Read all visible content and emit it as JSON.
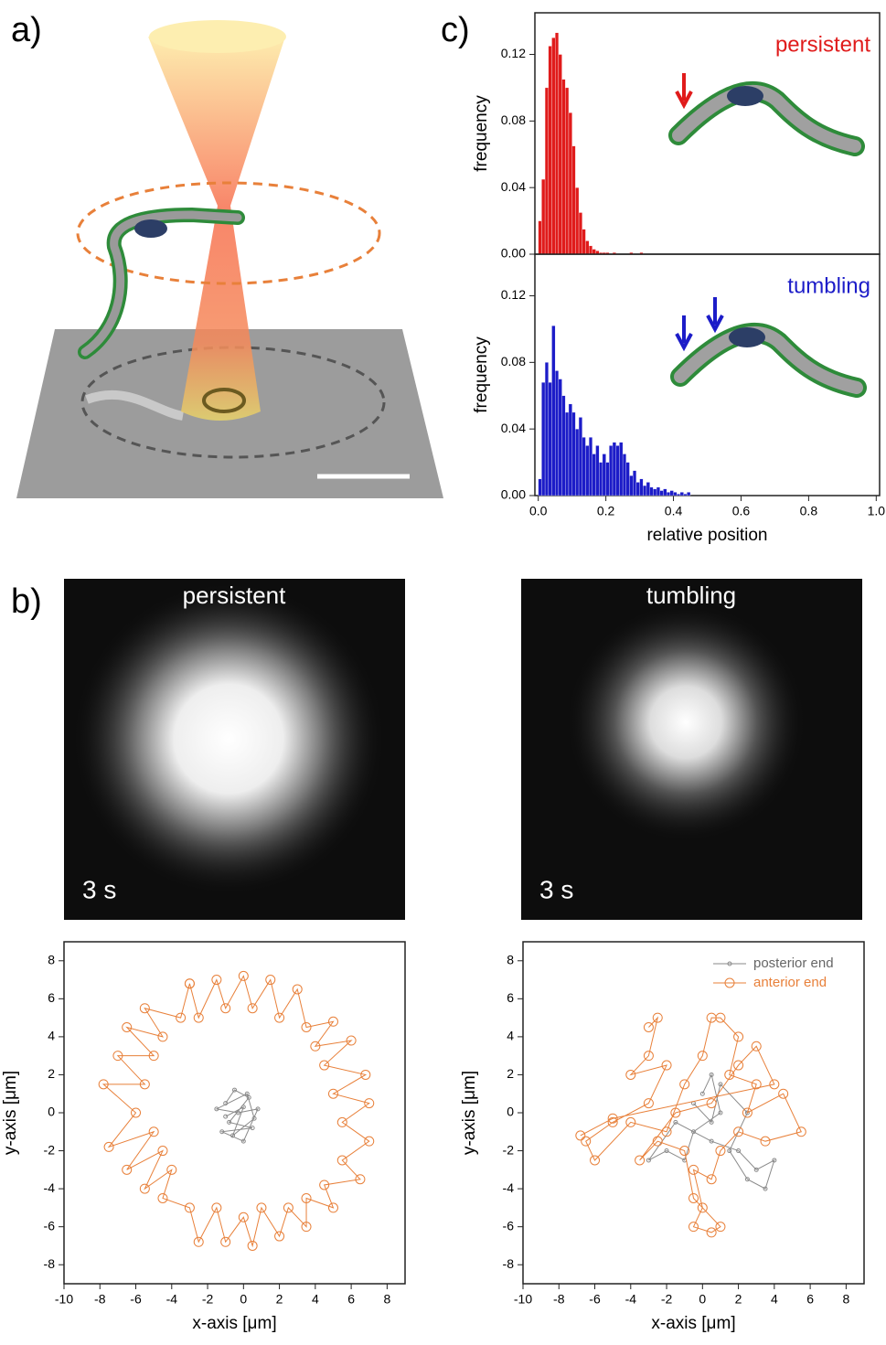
{
  "panel_labels": [
    "a)",
    "b)",
    "c)"
  ],
  "micrographs": [
    {
      "label": "persistent",
      "time": "3 s"
    },
    {
      "label": "tumbling",
      "time": "3 s"
    }
  ],
  "chart_data": [
    {
      "type": "histogram",
      "title": "persistent",
      "color": "#e01b1b",
      "y_label": "frequency",
      "bins": [
        0,
        0.01,
        0.02,
        0.03,
        0.04,
        0.05,
        0.06,
        0.07,
        0.08,
        0.09,
        0.1,
        0.11,
        0.12,
        0.13,
        0.14,
        0.15,
        0.16,
        0.17,
        0.18,
        0.19,
        0.2,
        0.21,
        0.22,
        0.23,
        0.24,
        0.25,
        0.26,
        0.27,
        0.28,
        0.29,
        0.3,
        0.31,
        0.32,
        0.33,
        0.34,
        0.35,
        0.36,
        0.37,
        0.38,
        0.39,
        0.4,
        0.41,
        0.42,
        0.43,
        0.44,
        0.45,
        0.46,
        0.47,
        0.48,
        0.49,
        0.5
      ],
      "values": [
        0.02,
        0.045,
        0.1,
        0.125,
        0.13,
        0.133,
        0.12,
        0.105,
        0.1,
        0.085,
        0.065,
        0.04,
        0.025,
        0.015,
        0.008,
        0.005,
        0.003,
        0.002,
        0.001,
        0.001,
        0.001,
        0,
        0.001,
        0,
        0,
        0,
        0,
        0.001,
        0,
        0,
        0.001,
        0,
        0,
        0,
        0,
        0,
        0,
        0,
        0,
        0,
        0,
        0,
        0,
        0,
        0,
        0,
        0,
        0,
        0,
        0
      ],
      "xlim": [
        -0.01,
        1.01
      ],
      "ylim": [
        0,
        0.145
      ],
      "yticks": [
        {
          "value": 0,
          "label": "0.00"
        },
        {
          "value": 0.04,
          "label": "0.04"
        },
        {
          "value": 0.08,
          "label": "0.08"
        },
        {
          "value": 0.12,
          "label": "0.12"
        }
      ]
    },
    {
      "type": "histogram",
      "title": "tumbling",
      "color": "#1c1cc8",
      "y_label": "frequency",
      "x_label": "relative position",
      "bins": [
        0,
        0.01,
        0.02,
        0.03,
        0.04,
        0.05,
        0.06,
        0.07,
        0.08,
        0.09,
        0.1,
        0.11,
        0.12,
        0.13,
        0.14,
        0.15,
        0.16,
        0.17,
        0.18,
        0.19,
        0.2,
        0.21,
        0.22,
        0.23,
        0.24,
        0.25,
        0.26,
        0.27,
        0.28,
        0.29,
        0.3,
        0.31,
        0.32,
        0.33,
        0.34,
        0.35,
        0.36,
        0.37,
        0.38,
        0.39,
        0.4,
        0.41,
        0.42,
        0.43,
        0.44,
        0.45,
        0.46,
        0.47,
        0.48,
        0.49,
        0.5
      ],
      "values": [
        0.01,
        0.068,
        0.08,
        0.068,
        0.102,
        0.075,
        0.07,
        0.06,
        0.05,
        0.055,
        0.05,
        0.04,
        0.047,
        0.035,
        0.03,
        0.035,
        0.025,
        0.03,
        0.02,
        0.025,
        0.02,
        0.03,
        0.032,
        0.03,
        0.032,
        0.025,
        0.02,
        0.012,
        0.015,
        0.008,
        0.01,
        0.006,
        0.008,
        0.005,
        0.004,
        0.005,
        0.003,
        0.004,
        0.002,
        0.003,
        0.002,
        0.001,
        0.002,
        0.001,
        0.002,
        0,
        0,
        0,
        0,
        0
      ],
      "xlim": [
        -0.01,
        1.01
      ],
      "ylim": [
        0,
        0.145
      ],
      "xticks": [
        {
          "value": 0,
          "label": "0.0"
        },
        {
          "value": 0.2,
          "label": "0.2"
        },
        {
          "value": 0.4,
          "label": "0.4"
        },
        {
          "value": 0.6,
          "label": "0.6"
        },
        {
          "value": 0.8,
          "label": "0.8"
        },
        {
          "value": 1,
          "label": "1.0"
        }
      ],
      "yticks": [
        {
          "value": 0,
          "label": "0.00"
        },
        {
          "value": 0.04,
          "label": "0.04"
        },
        {
          "value": 0.08,
          "label": "0.08"
        },
        {
          "value": 0.12,
          "label": "0.12"
        }
      ]
    },
    {
      "type": "trajectory",
      "x_label": "x-axis [μm]",
      "y_label": "y-axis [μm]",
      "xlim": [
        -10,
        9
      ],
      "ylim": [
        -9,
        9
      ],
      "xticks": [
        -10,
        -8,
        -6,
        -4,
        -2,
        0,
        2,
        4,
        6,
        8
      ],
      "yticks": [
        -8,
        -6,
        -4,
        -2,
        0,
        2,
        4,
        6,
        8
      ],
      "series": [
        {
          "color": "#8a8a8a",
          "marker_size": 2,
          "x": [
            -1,
            -0.5,
            0.3,
            -0.8,
            0.5,
            -1.2,
            0,
            0.8,
            -0.3,
            -1.5,
            0.2,
            0.6,
            -0.6,
            0,
            -1
          ],
          "values": [
            0.5,
            1.2,
            0.8,
            -0.5,
            -0.8,
            -1,
            -1.5,
            0.2,
            0,
            0.2,
            1,
            -0.3,
            -1.2,
            0.3,
            -0.2
          ]
        },
        {
          "color": "#e8803a",
          "marker_size": 5,
          "x": [
            -3,
            -2.5,
            -1.5,
            -1,
            0,
            0.5,
            1.5,
            2,
            3,
            3.5,
            5,
            4,
            6,
            4.5,
            6.8,
            5,
            7,
            5.5,
            7,
            5.5,
            6.5,
            4.5,
            5,
            3.5,
            3.5,
            2.5,
            2,
            1,
            0.5,
            0,
            -1,
            -1.5,
            -2.5,
            -3,
            -4.5,
            -4,
            -5.5,
            -4.5,
            -6.5,
            -5,
            -7.5,
            -6,
            -7.8,
            -5.5,
            -7,
            -5,
            -6.5,
            -4.5,
            -5.5,
            -3.5,
            -3
          ],
          "values": [
            6.8,
            5,
            7,
            5.5,
            7.2,
            5.5,
            7,
            5,
            6.5,
            4.5,
            4.8,
            3.5,
            3.8,
            2.5,
            2,
            1,
            0.5,
            -0.5,
            -1.5,
            -2.5,
            -3.5,
            -3.8,
            -5,
            -4.5,
            -6,
            -5,
            -6.5,
            -5,
            -7,
            -5.5,
            -6.8,
            -5,
            -6.8,
            -5,
            -4.5,
            -3,
            -4,
            -2,
            -3,
            -1,
            -1.8,
            0,
            1.5,
            1.5,
            3,
            3,
            4.5,
            4,
            5.5,
            5,
            6.8
          ]
        }
      ]
    },
    {
      "type": "trajectory",
      "x_label": "x-axis [μm]",
      "y_label": "y-axis [μm]",
      "legend": "upper right",
      "xlim": [
        -10,
        9
      ],
      "ylim": [
        -9,
        9
      ],
      "xticks": [
        -10,
        -8,
        -6,
        -4,
        -2,
        0,
        2,
        4,
        6,
        8
      ],
      "yticks": [
        -8,
        -6,
        -4,
        -2,
        0,
        2,
        4,
        6,
        8
      ],
      "series": [
        {
          "name": "posterior end",
          "color": "#8a8a8a",
          "marker_size": 2,
          "x": [
            0,
            0.5,
            1,
            -0.5,
            -1,
            -2,
            -3,
            -1.5,
            0.5,
            2,
            3,
            4,
            3.5,
            2.5,
            1.5,
            2.5,
            1,
            0.5,
            -0.5
          ],
          "values": [
            1,
            2,
            0,
            -1,
            -2.5,
            -2,
            -2.5,
            -0.5,
            -1.5,
            -2,
            -3,
            -2.5,
            -4,
            -3.5,
            -2,
            0,
            1.5,
            -0.5,
            0.5
          ]
        },
        {
          "name": "anterior end",
          "color": "#e8803a",
          "marker_size": 5,
          "x": [
            -3,
            -2.5,
            -3,
            -4,
            -2,
            -3,
            -5,
            -6.5,
            -6,
            -4,
            -2,
            -1,
            0,
            0.5,
            1,
            2,
            1.5,
            3,
            2.5,
            4.5,
            5.5,
            3.5,
            2,
            1,
            0.5,
            -0.5,
            0,
            -0.5,
            0.5,
            1,
            -0.5,
            -1,
            -2.5,
            -3.5,
            -1.5,
            0.5,
            2,
            3,
            4,
            -5,
            -6.8
          ],
          "values": [
            4.5,
            5,
            3,
            2,
            2.5,
            0.5,
            -0.5,
            -1.5,
            -2.5,
            -0.5,
            -1,
            1.5,
            3,
            5,
            5,
            4,
            2,
            1.5,
            0,
            1,
            -1,
            -1.5,
            -1,
            -2,
            -3.5,
            -3,
            -5,
            -6,
            -6.3,
            -6,
            -4.5,
            -2,
            -1.5,
            -2.5,
            0,
            0.5,
            2.5,
            3.5,
            1.5,
            -0.3,
            -1.2
          ]
        }
      ]
    }
  ]
}
